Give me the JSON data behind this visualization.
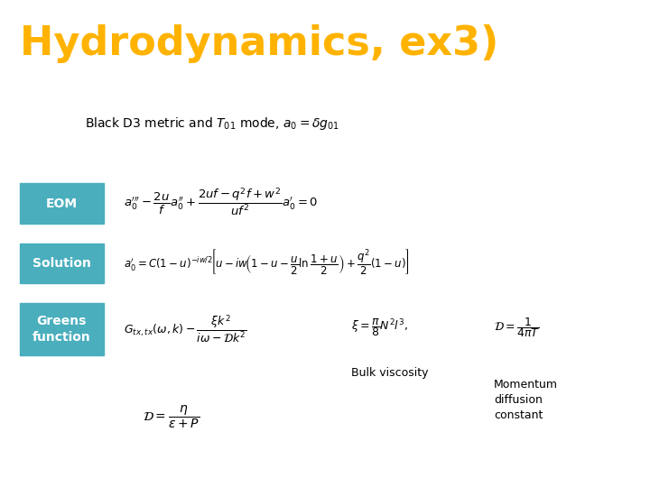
{
  "title": "Hydrodynamics, ex3)",
  "title_color": "#FFB300",
  "title_bg_color": "#000000",
  "title_fontsize": 32,
  "body_bg_color": "#FFFFFF",
  "header_text": "Black D3 metric and $T_{01}$ mode, $a_0 = \\delta g_{01}$",
  "labels": [
    "EOM",
    "Solution",
    "Greens\nfunction"
  ],
  "label_bg_color": "#4AAEBD",
  "label_text_color": "#FFFFFF",
  "label_bulk": "Bulk viscosity",
  "label_momentum": "Momentum\ndiffusion\nconstant"
}
